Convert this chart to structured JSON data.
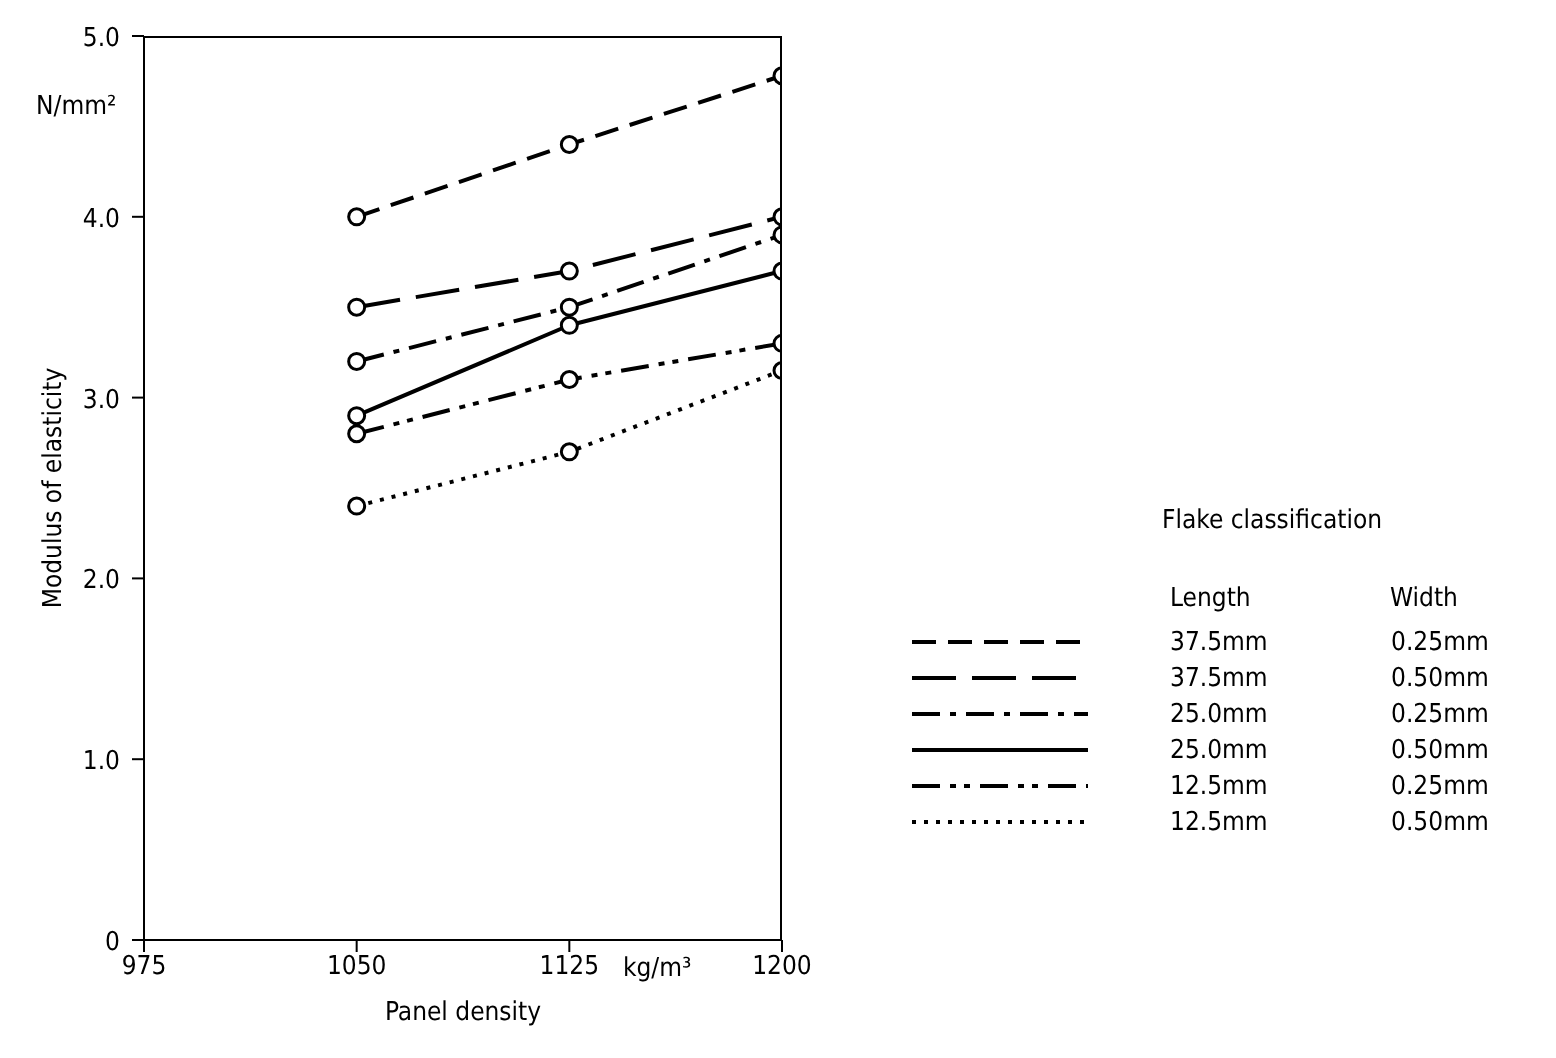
{
  "chart_data": {
    "type": "line",
    "xlabel": "Panel density",
    "ylabel": "Modulus of elasticity",
    "legend_title": "Flake classification",
    "annotations": [
      "N/mm²",
      "kg/m³",
      "Length",
      "Width"
    ],
    "x": [
      1050,
      1125,
      1200
    ],
    "xlim": [
      975,
      1200
    ],
    "xticks": [
      975,
      1050,
      1125,
      1200
    ],
    "ylim": [
      0,
      5
    ],
    "yticks": [
      0,
      {
        "value": 1,
        "label": "1.0"
      },
      {
        "value": 2,
        "label": "2.0"
      },
      {
        "value": 3,
        "label": "3.0"
      },
      {
        "value": 4,
        "label": "4.0"
      },
      {
        "value": 5,
        "label": "5.0"
      }
    ],
    "grid": false,
    "legend": "right",
    "marker": "circle",
    "series": [
      {
        "name": "37.5mm 0.25mm",
        "color": "#000000",
        "line_style": "dashed",
        "values": [
          4.0,
          4.4,
          4.78
        ]
      },
      {
        "name": "37.5mm 0.50mm",
        "color": "#000000",
        "line_style": "longdash",
        "values": [
          3.5,
          3.7,
          4.0
        ]
      },
      {
        "name": "25.0mm 0.25mm",
        "color": "#000000",
        "line_style": "dashdot",
        "values": [
          3.2,
          3.5,
          3.9
        ]
      },
      {
        "name": "25.0mm 0.50mm",
        "color": "#000000",
        "line_style": "solid",
        "values": [
          2.9,
          3.4,
          3.7
        ]
      },
      {
        "name": "12.5mm 0.25mm",
        "color": "#000000",
        "line_style": "dashdotdot",
        "values": [
          2.8,
          3.1,
          3.3
        ]
      },
      {
        "name": "12.5mm 0.50mm",
        "color": "#000000",
        "line_style": "dotted",
        "values": [
          2.4,
          2.7,
          3.15
        ]
      }
    ]
  }
}
